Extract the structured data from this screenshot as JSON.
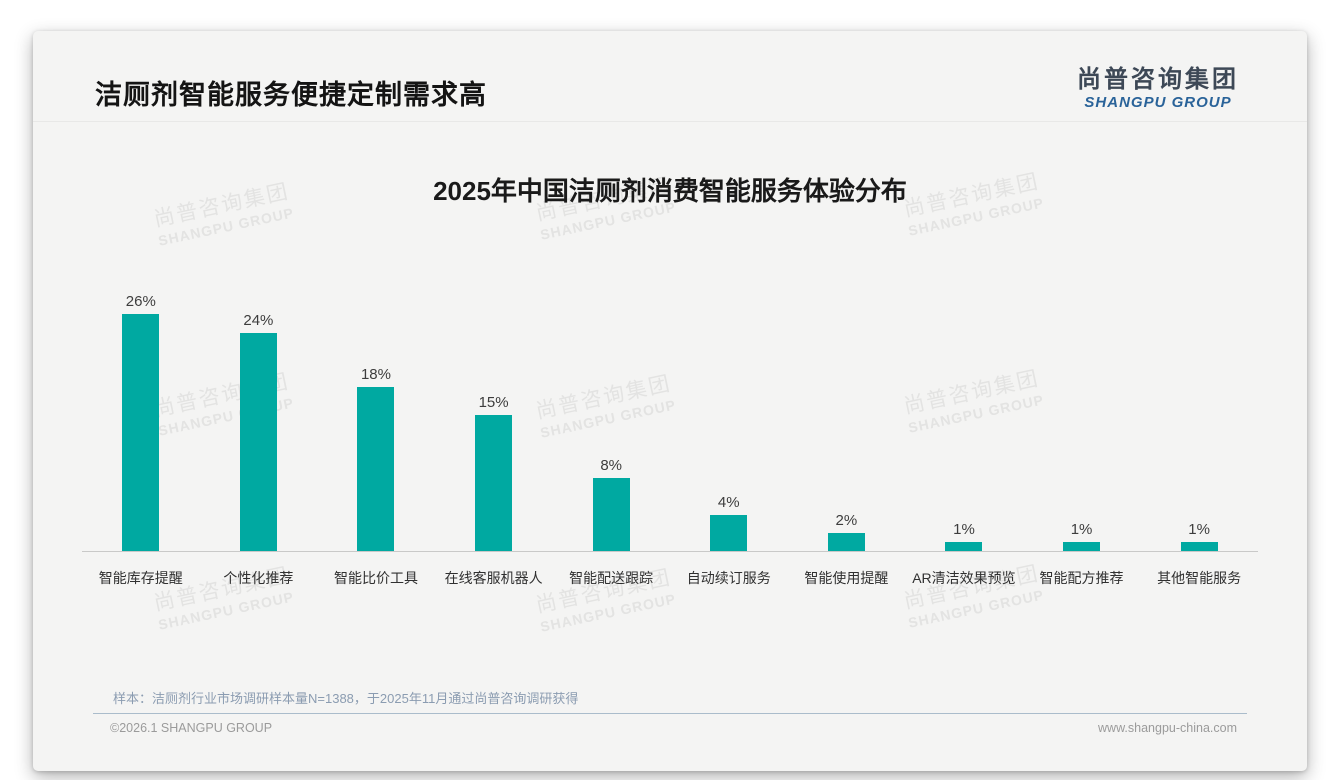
{
  "page": {
    "title": "洁厕剂智能服务便捷定制需求高",
    "logo": {
      "cn": "尚普咨询集团",
      "en": "SHANGPU GROUP"
    },
    "watermark": {
      "cn": "尚普咨询集团",
      "en": "SHANGPU GROUP"
    },
    "footnote": "样本：洁厕剂行业市场调研样本量N=1388，于2025年11月通过尚普咨询调研获得",
    "footer": {
      "copyright": "©2026.1 SHANGPU GROUP",
      "website": "www.shangpu-china.com"
    }
  },
  "chart_data": {
    "type": "bar",
    "title": "2025年中国洁厕剂消费智能服务体验分布",
    "categories": [
      "智能库存提醒",
      "个性化推荐",
      "智能比价工具",
      "在线客服机器人",
      "智能配送跟踪",
      "自动续订服务",
      "智能使用提醒",
      "AR清洁效果预览",
      "智能配方推荐",
      "其他智能服务"
    ],
    "values": [
      26,
      24,
      18,
      15,
      8,
      4,
      2,
      1,
      1,
      1
    ],
    "value_labels": [
      "26%",
      "24%",
      "18%",
      "15%",
      "8%",
      "4%",
      "2%",
      "1%",
      "1%",
      "1%"
    ],
    "unit": "%",
    "ylim": [
      0,
      28.5
    ],
    "grid": false,
    "legend": false,
    "xlabel": "",
    "ylabel": "",
    "bar_color": "#00a9a1",
    "axis_color": "#c9c9c8"
  }
}
